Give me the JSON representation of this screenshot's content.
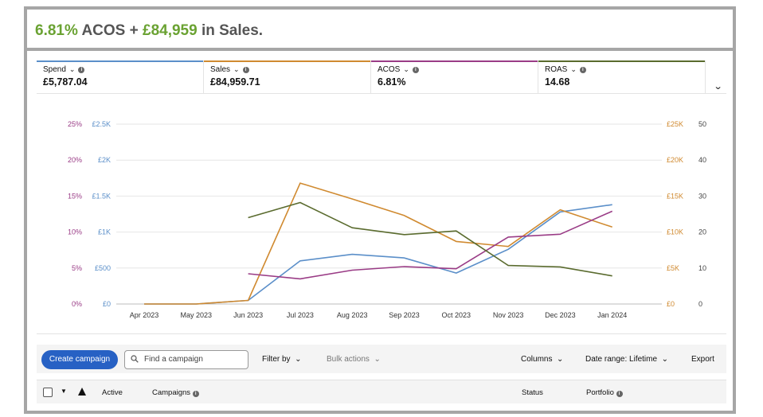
{
  "headline": {
    "acos_value": "6.81%",
    "acos_text": " ACOS + ",
    "sales_value": "£84,959",
    "sales_text": " in Sales."
  },
  "metrics": [
    {
      "label": "Spend",
      "value": "£5,787.04",
      "color": "#5b8fc9"
    },
    {
      "label": "Sales",
      "value": "£84,959.71",
      "color": "#d08a30"
    },
    {
      "label": "ACOS",
      "value": "6.81%",
      "color": "#9a3c86"
    },
    {
      "label": "ROAS",
      "value": "14.68",
      "color": "#5a6b2e"
    }
  ],
  "chart_data": {
    "type": "line",
    "categories": [
      "Apr 2023",
      "May 2023",
      "Jun 2023",
      "Jul 2023",
      "Aug 2023",
      "Sep 2023",
      "Oct 2023",
      "Nov 2023",
      "Dec 2023",
      "Jan 2024"
    ],
    "axes": {
      "left_acos_ticks": [
        "0%",
        "5%",
        "10%",
        "15%",
        "20%",
        "25%"
      ],
      "left_spend_ticks": [
        "£0",
        "£500",
        "£1K",
        "£1.5K",
        "£2K",
        "£2.5K"
      ],
      "right_sales_ticks": [
        "£0",
        "£5K",
        "£10K",
        "£15K",
        "£20K",
        "£25K"
      ],
      "right_roas_ticks": [
        "0",
        "10",
        "20",
        "30",
        "40",
        "50"
      ]
    },
    "series": [
      {
        "name": "Spend",
        "axis": "spend",
        "ylim": [
          0,
          2500
        ],
        "color": "#5b8fc9",
        "values": [
          0,
          0,
          50,
          600,
          690,
          640,
          430,
          760,
          1280,
          1380
        ]
      },
      {
        "name": "Sales",
        "axis": "sales",
        "ylim": [
          0,
          25000
        ],
        "color": "#d08a30",
        "values": [
          0,
          0,
          500,
          16800,
          14600,
          12300,
          8700,
          8000,
          13100,
          10700
        ]
      },
      {
        "name": "ACOS",
        "axis": "acos",
        "ylim": [
          0,
          25
        ],
        "color": "#9a3c86",
        "values": [
          null,
          null,
          4.2,
          3.5,
          4.7,
          5.2,
          4.9,
          9.3,
          9.7,
          12.9
        ]
      },
      {
        "name": "ROAS",
        "axis": "roas",
        "ylim": [
          0,
          50
        ],
        "color": "#5a6b2e",
        "values": [
          null,
          null,
          24,
          28.2,
          21.2,
          19.3,
          20.3,
          10.7,
          10.3,
          7.8
        ]
      }
    ],
    "grid": true
  },
  "toolbar": {
    "create_label": "Create campaign",
    "search_placeholder": "Find a campaign",
    "filter_label": "Filter by",
    "bulk_label": "Bulk actions",
    "columns_label": "Columns",
    "date_range_label": "Date range: Lifetime",
    "export_label": "Export"
  },
  "table": {
    "col_active": "Active",
    "col_campaigns": "Campaigns",
    "col_status": "Status",
    "col_portfolio": "Portfolio"
  },
  "icons": {
    "chevron": "chevron-down-icon",
    "info": "info-icon",
    "search": "search-icon",
    "warning": "warning-icon"
  }
}
